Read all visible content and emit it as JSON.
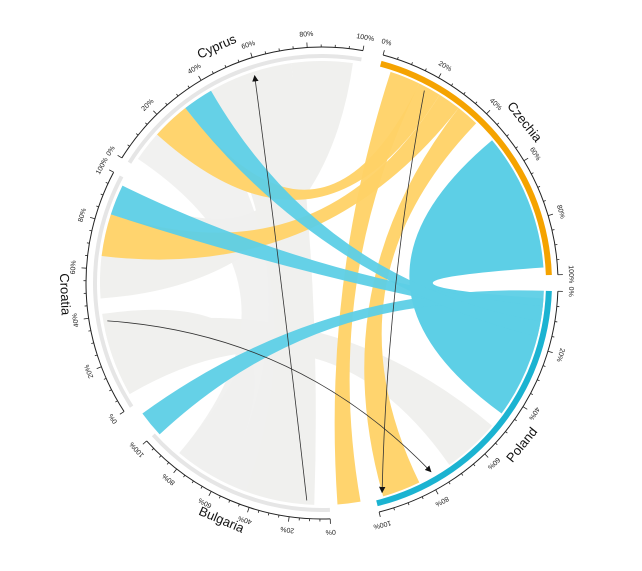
{
  "diagram": {
    "type": "chord",
    "sectors": [
      {
        "id": "Poland",
        "label": "Poland",
        "color": "#1BB3D1",
        "bar_style": "thick"
      },
      {
        "id": "Bulgaria",
        "label": "Bulgaria",
        "color": "#E6E6E6",
        "bar_style": "thin"
      },
      {
        "id": "Croatia",
        "label": "Croatia",
        "color": "#E6E6E6",
        "bar_style": "thin"
      },
      {
        "id": "Cyprus",
        "label": "Cyprus",
        "color": "#E6E6E6",
        "bar_style": "thin"
      },
      {
        "id": "Czechia",
        "label": "Czechia",
        "color": "#F5A300",
        "bar_style": "thick"
      }
    ],
    "tick_labels": [
      "0%",
      "20%",
      "40%",
      "60%",
      "80%",
      "100%"
    ],
    "ribbon_colors": {
      "gray": "#F0F0EE",
      "yellow": "#FFD266",
      "blue": "#5DCFE6"
    },
    "highlighted_ribbons": [
      {
        "from": "Czechia",
        "to": "Cyprus",
        "color": "yellow"
      },
      {
        "from": "Czechia",
        "to": "Croatia",
        "color": "yellow"
      },
      {
        "from": "Czechia",
        "to": "Bulgaria",
        "color": "yellow"
      },
      {
        "from": "Czechia",
        "to": "Poland",
        "color": "yellow"
      },
      {
        "from": "Poland",
        "to": "Cyprus",
        "color": "blue"
      },
      {
        "from": "Poland",
        "to": "Croatia",
        "color": "blue"
      },
      {
        "from": "Poland",
        "to": "Bulgaria",
        "color": "blue"
      },
      {
        "from": "Poland",
        "to": "Czechia",
        "color": "blue"
      }
    ],
    "arrows": [
      {
        "from": "Bulgaria",
        "to": "Cyprus"
      },
      {
        "from": "Croatia",
        "to": "Poland"
      },
      {
        "from": "Czechia",
        "to": "Poland"
      }
    ]
  }
}
